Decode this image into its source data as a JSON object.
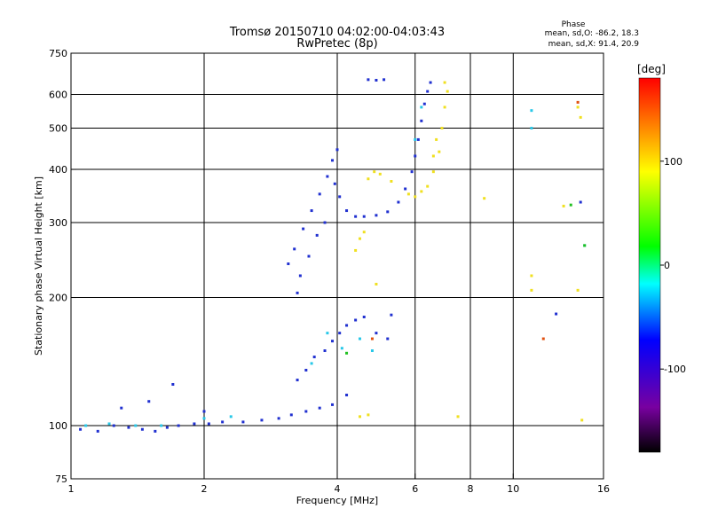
{
  "chart_data": {
    "type": "scatter",
    "title": "Tromsø 20150710 04:02:00-04:03:43",
    "subtitle": "RwPretec (8p)",
    "xlabel": "Frequency [MHz]",
    "ylabel": "Stationary phase Virtual Height [km]",
    "x_scale": "log",
    "y_scale": "log",
    "xlim": [
      1,
      16
    ],
    "ylim": [
      75,
      750
    ],
    "x_ticks": [
      1,
      2,
      4,
      6,
      8,
      10,
      16
    ],
    "x_ticklabels": [
      "1",
      "2",
      "4",
      "6",
      "8",
      "10",
      "16"
    ],
    "x_grid": [
      2,
      4,
      6,
      8,
      10
    ],
    "y_ticks": [
      75,
      100,
      200,
      300,
      400,
      500,
      600,
      750
    ],
    "y_ticklabels": [
      "75",
      "100",
      "200",
      "300",
      "400",
      "500",
      "600",
      "750"
    ],
    "y_grid": [
      100,
      200,
      300,
      400,
      500,
      600
    ],
    "grid": true,
    "stats": {
      "heading": "Phase",
      "line_o": "mean, sd,O: -86.2, 18.3",
      "line_x": "mean, sd,X:  91.4, 20.9"
    },
    "colorbar": {
      "label": "[deg]",
      "range": [
        -180,
        180
      ],
      "ticks": [
        100,
        0,
        -100
      ],
      "ticklabels": [
        "100",
        "0",
        "-100"
      ],
      "colormap": [
        "#000000",
        "#7800a0",
        "#0000ff",
        "#00ffff",
        "#00ff00",
        "#ffff00",
        "#ff0000"
      ]
    },
    "series": [
      {
        "color": "#2030d0",
        "points": [
          [
            1.05,
            98
          ],
          [
            1.15,
            97
          ],
          [
            1.25,
            100
          ],
          [
            1.35,
            99
          ],
          [
            1.45,
            98
          ],
          [
            1.55,
            97
          ],
          [
            1.65,
            99
          ],
          [
            1.75,
            100
          ],
          [
            1.9,
            101
          ],
          [
            2.05,
            101
          ],
          [
            2.2,
            102
          ],
          [
            2.45,
            102
          ],
          [
            2.7,
            103
          ],
          [
            2.95,
            104
          ],
          [
            3.15,
            106
          ],
          [
            3.4,
            108
          ],
          [
            3.65,
            110
          ],
          [
            3.9,
            112
          ],
          [
            4.2,
            118
          ],
          [
            3.25,
            128
          ],
          [
            3.4,
            135
          ],
          [
            3.55,
            145
          ],
          [
            3.75,
            150
          ],
          [
            3.9,
            158
          ],
          [
            4.05,
            165
          ],
          [
            4.2,
            172
          ],
          [
            4.4,
            177
          ],
          [
            4.6,
            180
          ],
          [
            5.3,
            182
          ],
          [
            5.2,
            160
          ],
          [
            4.9,
            165
          ],
          [
            1.7,
            125
          ],
          [
            1.5,
            114
          ],
          [
            1.3,
            110
          ],
          [
            2.0,
            108
          ],
          [
            3.1,
            240
          ],
          [
            3.2,
            260
          ],
          [
            3.35,
            290
          ],
          [
            3.5,
            320
          ],
          [
            3.65,
            350
          ],
          [
            3.8,
            385
          ],
          [
            3.9,
            420
          ],
          [
            4.0,
            445
          ],
          [
            3.95,
            370
          ],
          [
            4.05,
            345
          ],
          [
            4.2,
            320
          ],
          [
            4.4,
            310
          ],
          [
            4.6,
            310
          ],
          [
            4.9,
            312
          ],
          [
            5.2,
            318
          ],
          [
            5.5,
            335
          ],
          [
            5.7,
            360
          ],
          [
            5.9,
            395
          ],
          [
            6.0,
            430
          ],
          [
            6.1,
            470
          ],
          [
            6.2,
            520
          ],
          [
            6.3,
            570
          ],
          [
            6.4,
            610
          ],
          [
            6.5,
            640
          ],
          [
            3.3,
            225
          ],
          [
            3.45,
            250
          ],
          [
            3.6,
            280
          ],
          [
            3.75,
            300
          ],
          [
            3.25,
            205
          ],
          [
            4.7,
            650
          ],
          [
            4.9,
            648
          ],
          [
            5.1,
            650
          ],
          [
            12.5,
            183
          ],
          [
            14.2,
            335
          ]
        ]
      },
      {
        "color": "#28c8e8",
        "points": [
          [
            1.08,
            100
          ],
          [
            1.22,
            101
          ],
          [
            1.4,
            100
          ],
          [
            1.6,
            100
          ],
          [
            2.0,
            104
          ],
          [
            2.3,
            105
          ],
          [
            3.5,
            140
          ],
          [
            3.8,
            165
          ],
          [
            4.1,
            152
          ],
          [
            4.5,
            160
          ],
          [
            4.8,
            150
          ],
          [
            6.2,
            560
          ],
          [
            6.0,
            470
          ],
          [
            11.0,
            500
          ],
          [
            11.0,
            550
          ],
          [
            14.5,
            265
          ]
        ]
      },
      {
        "color": "#f0e020",
        "points": [
          [
            4.4,
            258
          ],
          [
            4.5,
            275
          ],
          [
            4.6,
            285
          ],
          [
            4.7,
            380
          ],
          [
            4.85,
            395
          ],
          [
            5.0,
            390
          ],
          [
            5.3,
            375
          ],
          [
            4.9,
            215
          ],
          [
            4.5,
            105
          ],
          [
            4.7,
            106
          ],
          [
            5.8,
            350
          ],
          [
            6.0,
            345
          ],
          [
            6.2,
            355
          ],
          [
            6.4,
            365
          ],
          [
            6.6,
            395
          ],
          [
            6.8,
            440
          ],
          [
            6.9,
            500
          ],
          [
            7.0,
            560
          ],
          [
            7.1,
            610
          ],
          [
            7.0,
            640
          ],
          [
            6.7,
            470
          ],
          [
            6.6,
            430
          ],
          [
            7.5,
            105
          ],
          [
            8.6,
            342
          ],
          [
            11.0,
            225
          ],
          [
            11.0,
            208
          ],
          [
            13.0,
            328
          ],
          [
            14.0,
            560
          ],
          [
            14.2,
            530
          ],
          [
            14.0,
            208
          ],
          [
            14.3,
            103
          ]
        ]
      },
      {
        "color": "#e05010",
        "points": [
          [
            4.8,
            160
          ],
          [
            11.7,
            160
          ],
          [
            14.0,
            575
          ]
        ]
      },
      {
        "color": "#20c020",
        "points": [
          [
            4.2,
            148
          ],
          [
            14.5,
            265
          ],
          [
            13.5,
            330
          ]
        ]
      }
    ]
  }
}
